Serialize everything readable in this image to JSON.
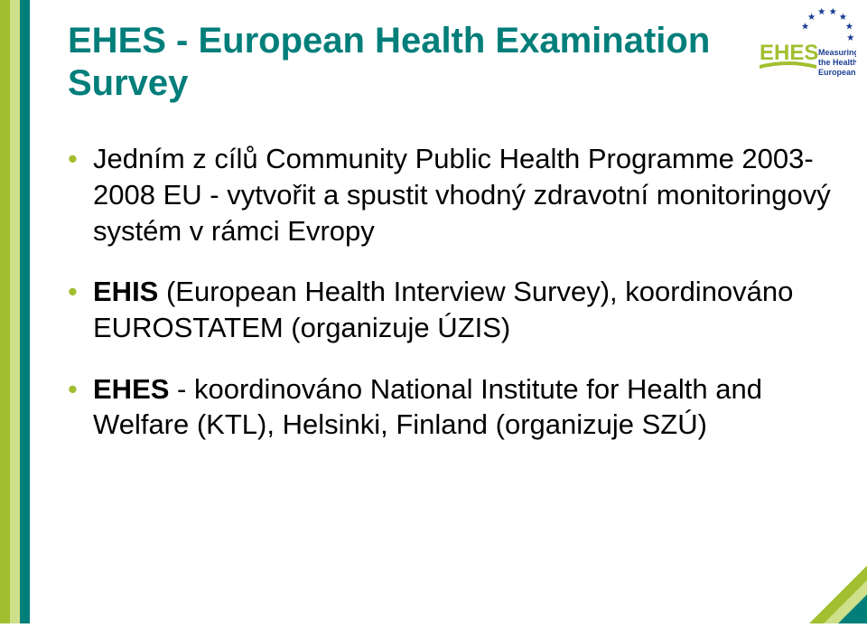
{
  "leftBars": {
    "colors": [
      "#a2bf2f",
      "#cfe08a",
      "#007e7a"
    ]
  },
  "title": {
    "text": "EHES - European Health Examination Survey",
    "color": "#007e7a",
    "fontsize": 40
  },
  "bulletColor": "#a2bf2f",
  "bullets": [
    {
      "segments": [
        {
          "text": "Jedním z cílů Community Public Health Programme 2003-2008 EU - vytvořit a spustit vhodný zdravotní monitoringový systém v rámci Evropy",
          "bold": false
        }
      ]
    },
    {
      "segments": [
        {
          "text": "EHIS",
          "bold": true
        },
        {
          "text": " (European Health Interview Survey), koordinováno EUROSTATEM (organizuje ÚZIS)",
          "bold": false
        }
      ]
    },
    {
      "segments": [
        {
          "text": "EHES",
          "bold": true
        },
        {
          "text": " - koordinováno National Institute for Health and Welfare (KTL), Helsinki, Finland (organizuje SZÚ)",
          "bold": false
        }
      ]
    }
  ],
  "logo": {
    "brandText": "EHES",
    "tagline": [
      "Measuring",
      "the Health of",
      "Europeans"
    ],
    "brandColor": "#a2bf2f",
    "starColor": "#1c3f94",
    "taglineColor": "#1c3f94",
    "swooshColor": "#a2bf2f"
  },
  "corner": {
    "colors": [
      "#a2bf2f",
      "#cfe08a",
      "#007e7a"
    ]
  }
}
